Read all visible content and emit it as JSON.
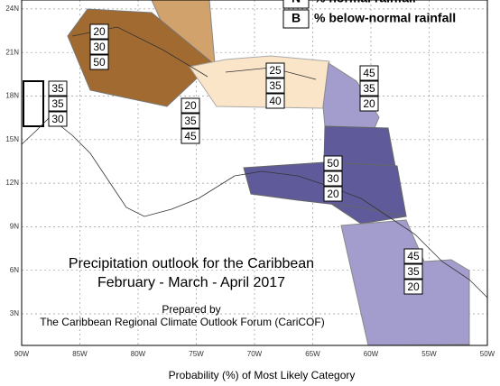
{
  "title": "Precipitation outlook for the Caribbean",
  "subtitle": "February - March - April 2017",
  "prepared_by": "Prepared by",
  "forum": "The Caribbean Regional Climate Outlook Forum (CariCOF)",
  "legend": [
    {
      "key": "N",
      "label": "% normal rainfall"
    },
    {
      "key": "B",
      "label": "% below-normal rainfall"
    }
  ],
  "axis_label": "Probability (%) of Most Likely Category",
  "lon_labels": [
    "90W",
    "85W",
    "80W",
    "75W",
    "70W",
    "65W",
    "60W",
    "55W",
    "50W"
  ],
  "lat_labels": [
    "3N",
    "6N",
    "9N",
    "12N",
    "15N",
    "18N",
    "21N",
    "24N"
  ],
  "stacks": [
    {
      "values": [
        "20",
        "30",
        "50"
      ]
    },
    {
      "values": [
        "25",
        "35",
        "40"
      ]
    },
    {
      "values": [
        "20",
        "35",
        "45"
      ]
    },
    {
      "values": [
        "35",
        "35",
        "30"
      ]
    },
    {
      "values": [
        "45",
        "35",
        "20"
      ]
    },
    {
      "values": [
        "50",
        "30",
        "20"
      ]
    },
    {
      "values": [
        "45",
        "35",
        "20"
      ]
    }
  ]
}
